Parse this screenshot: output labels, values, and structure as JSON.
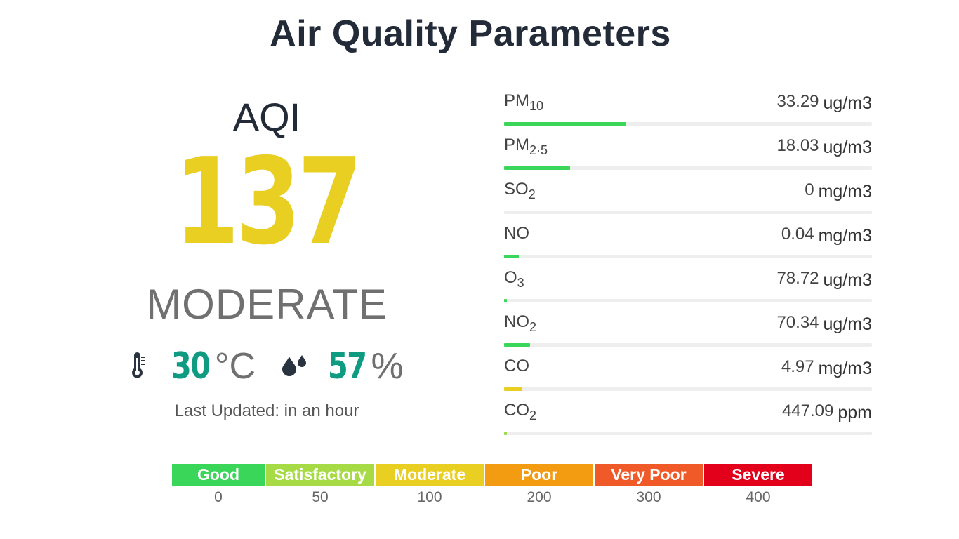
{
  "title": "Air Quality Parameters",
  "aqi": {
    "label": "AQI",
    "value": "137",
    "status": "MODERATE",
    "color": "#e8cf22"
  },
  "weather": {
    "temperature_icon": "thermometer-icon",
    "temperature": "30",
    "temperature_unit": "°C",
    "humidity_icon": "water-drops-icon",
    "humidity": "57",
    "humidity_unit": "%",
    "value_color": "#0f9b82"
  },
  "last_updated": "Last Updated: in an hour",
  "parameters": [
    {
      "name": "PM",
      "sub": "10",
      "value": "33.29",
      "unit": "ug/m3",
      "level": 0.333,
      "color": "#3ad65a"
    },
    {
      "name": "PM",
      "sub": "2·5",
      "value": "18.03",
      "unit": "ug/m3",
      "level": 0.18,
      "color": "#3ad65a"
    },
    {
      "name": "SO",
      "sub": "2",
      "value": "0",
      "unit": "mg/m3",
      "level": 0.0,
      "color": "#3ad65a"
    },
    {
      "name": "NO",
      "sub": "",
      "value": "0.04",
      "unit": "mg/m3",
      "level": 0.04,
      "color": "#3ad65a"
    },
    {
      "name": "O",
      "sub": "3",
      "value": "78.72",
      "unit": "ug/m3",
      "level": 0.008,
      "color": "#3ad65a"
    },
    {
      "name": "NO",
      "sub": "2",
      "value": "70.34",
      "unit": "ug/m3",
      "level": 0.07,
      "color": "#3ad65a"
    },
    {
      "name": "CO",
      "sub": "",
      "value": "4.97",
      "unit": "mg/m3",
      "level": 0.05,
      "color": "#e8cf22"
    },
    {
      "name": "CO",
      "sub": "2",
      "value": "447.09",
      "unit": "ppm",
      "level": 0.008,
      "color": "#9fdc4a"
    }
  ],
  "scale": {
    "segments": [
      {
        "label": "Good",
        "color": "#3ad65a"
      },
      {
        "label": "Satisfactory",
        "color": "#a6db45"
      },
      {
        "label": "Moderate",
        "color": "#e8cf22"
      },
      {
        "label": "Poor",
        "color": "#f39c12"
      },
      {
        "label": "Very Poor",
        "color": "#f05a28"
      },
      {
        "label": "Severe",
        "color": "#e3001b"
      }
    ],
    "ticks": [
      "0",
      "50",
      "100",
      "200",
      "300",
      "400"
    ]
  }
}
